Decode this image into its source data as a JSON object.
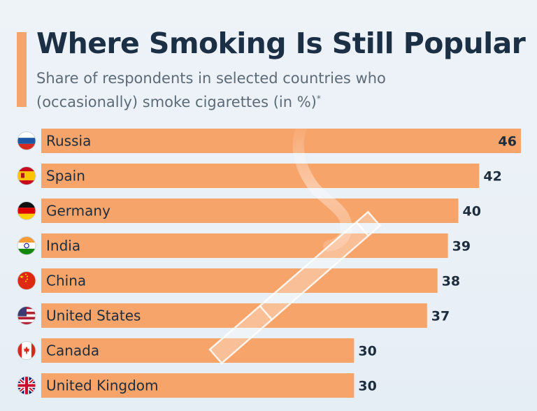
{
  "header": {
    "title": "Where Smoking Is Still Popular",
    "subtitle": "Share of respondents in selected countries who (occasionally) smoke cigarettes (in %)",
    "subtitle_note_marker": "*"
  },
  "colors": {
    "accent": "#f7a46b",
    "bar": "#f7a46b",
    "title": "#1b2f45",
    "subtitle": "#5d6b78",
    "background": "#e9f0f6"
  },
  "chart_data": {
    "type": "bar",
    "orientation": "horizontal",
    "categories": [
      "Russia",
      "Spain",
      "Germany",
      "India",
      "China",
      "United States",
      "Canada",
      "United Kingdom"
    ],
    "values": [
      46,
      42,
      40,
      39,
      38,
      37,
      30,
      30
    ],
    "flags": [
      "russia-flag-icon",
      "spain-flag-icon",
      "germany-flag-icon",
      "india-flag-icon",
      "china-flag-icon",
      "usa-flag-icon",
      "canada-flag-icon",
      "uk-flag-icon"
    ],
    "title": "Where Smoking Is Still Popular",
    "unit": "%",
    "xlim": [
      0,
      46
    ],
    "grid": false,
    "data_labels": true,
    "decoration": "cigarette-with-smoke"
  }
}
